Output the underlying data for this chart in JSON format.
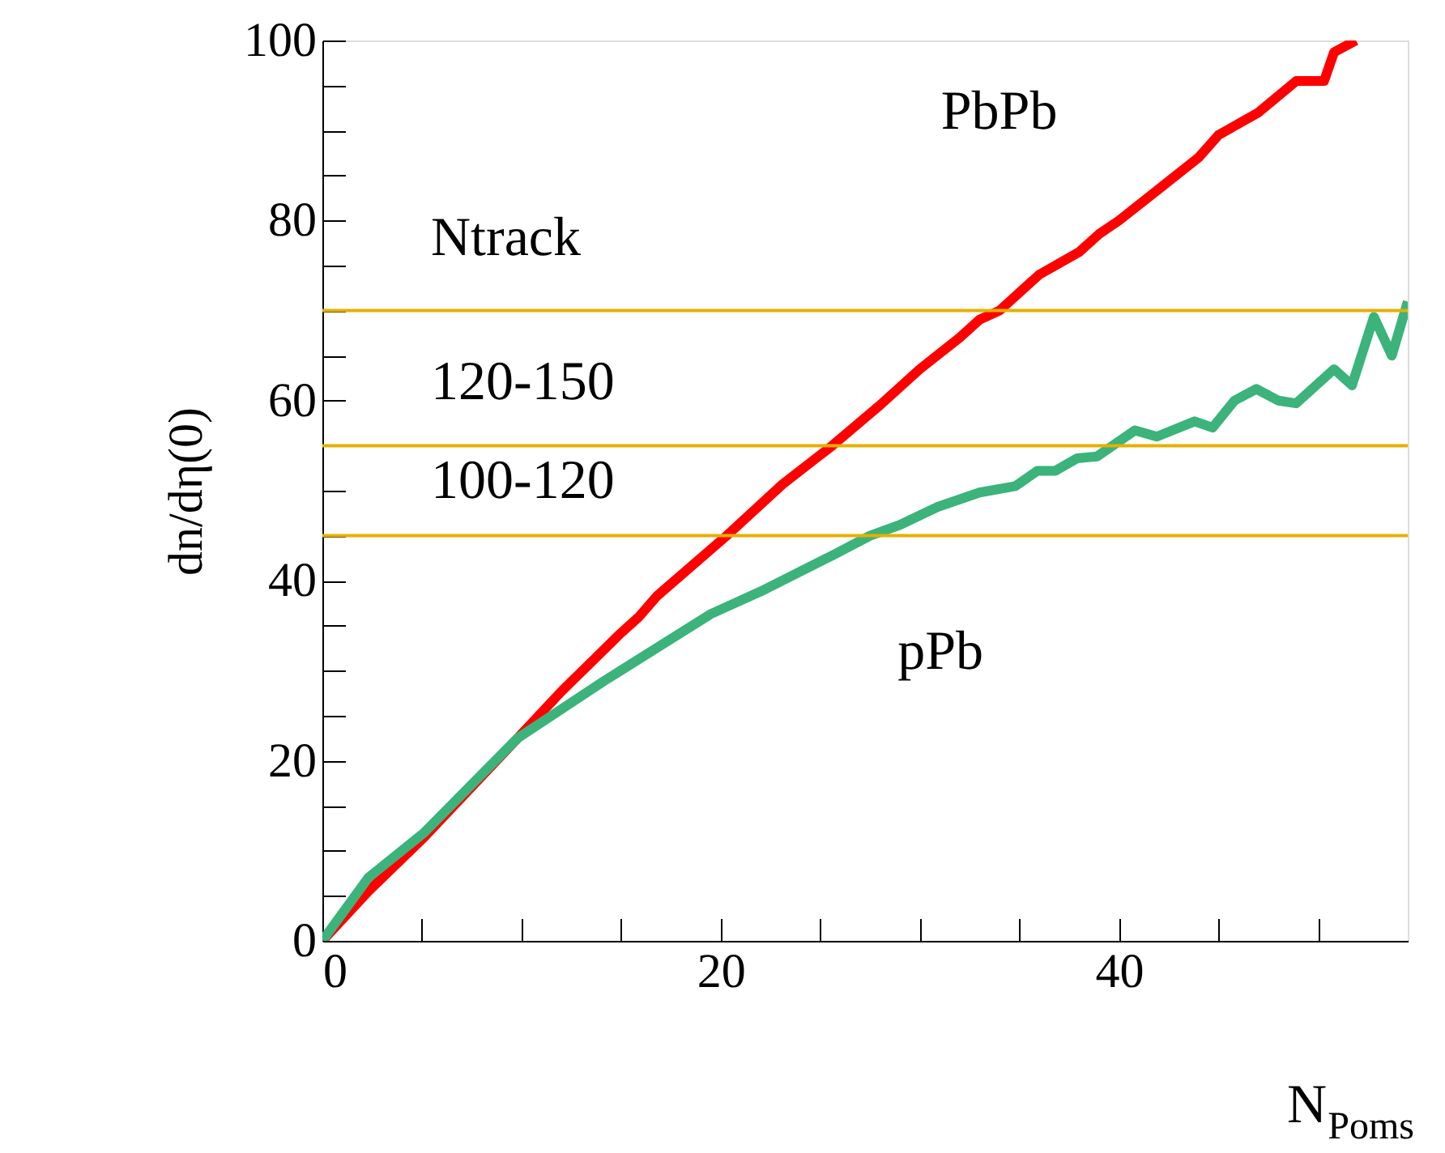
{
  "chart_data": {
    "type": "line",
    "xlabel": "N$_{Poms}$",
    "ylabel": "dn/dη(0)",
    "xlim": [
      0,
      54.5
    ],
    "ylim": [
      0,
      100
    ],
    "xticks": [
      0,
      {
        "value": 5,
        "label": null
      },
      {
        "value": 10,
        "label": null
      },
      {
        "value": 15,
        "label": null
      },
      20,
      {
        "value": 25,
        "label": null
      },
      {
        "value": 30,
        "label": null
      },
      {
        "value": 35,
        "label": null
      },
      40,
      {
        "value": 45,
        "label": null
      },
      {
        "value": 50,
        "label": null
      }
    ],
    "yticks": [
      0,
      {
        "value": 5,
        "label": null
      },
      {
        "value": 10,
        "label": null
      },
      {
        "value": 15,
        "label": null
      },
      20,
      {
        "value": 25,
        "label": null
      },
      {
        "value": 30,
        "label": null
      },
      {
        "value": 35,
        "label": null
      },
      40,
      {
        "value": 45,
        "label": null
      },
      {
        "value": 50,
        "label": null
      },
      {
        "value": 55,
        "label": null
      },
      60,
      {
        "value": 65,
        "label": null
      },
      {
        "value": 70,
        "label": null
      },
      {
        "value": 75,
        "label": null
      },
      80,
      {
        "value": 85,
        "label": null
      },
      {
        "value": 90,
        "label": null
      },
      {
        "value": 95,
        "label": null
      },
      100
    ],
    "grid": false,
    "legend": false,
    "marker": "none",
    "line_style": "solid",
    "series": [
      {
        "name": "PbPb",
        "color": "#ff0000",
        "x": [
          0,
          2.3,
          5.1,
          9.8,
          12,
          14.9,
          15.9,
          16.8,
          20.2,
          23.1,
          25.6,
          28,
          30,
          32,
          33,
          34,
          36,
          38,
          39,
          40,
          42,
          44,
          45,
          47,
          48.9,
          50.3,
          50.8,
          51.9
        ],
        "values": [
          0,
          5.5,
          11.5,
          22.5,
          27.7,
          34,
          36,
          38.3,
          44.8,
          50.7,
          55,
          59.5,
          63.5,
          67,
          69,
          70,
          74,
          76.5,
          78.5,
          80,
          83.5,
          87,
          89.5,
          92,
          95.5,
          95.5,
          98.7,
          100
        ]
      },
      {
        "name": "pPb",
        "color": "#3cb37a",
        "x": [
          0,
          2.3,
          5.1,
          9.8,
          14.1,
          19.5,
          22,
          25.6,
          27.5,
          29,
          30.9,
          33,
          34.8,
          35.9,
          36.8,
          37.9,
          38.9,
          40.8,
          41.9,
          43.8,
          44.7,
          45.8,
          46.9,
          48,
          48.9,
          50.8,
          51.7,
          52.8,
          53.7,
          54.5
        ],
        "values": [
          0,
          7,
          12,
          22.5,
          28.8,
          36.3,
          38.8,
          42.8,
          45,
          46.2,
          48.2,
          49.8,
          50.5,
          52.2,
          52.2,
          53.6,
          53.8,
          56.7,
          56,
          57.7,
          57,
          60,
          61.3,
          60,
          59.7,
          63.5,
          61.7,
          69.3,
          65,
          71
        ]
      }
    ],
    "ref_lines": [
      {
        "axis": "y",
        "value": 70,
        "color": "#e6b000"
      },
      {
        "axis": "y",
        "value": 55,
        "color": "#e6b000"
      },
      {
        "axis": "y",
        "value": 45,
        "color": "#e6b000"
      }
    ],
    "annotations": [
      "Ntrack",
      "120-150",
      "100-120"
    ]
  }
}
